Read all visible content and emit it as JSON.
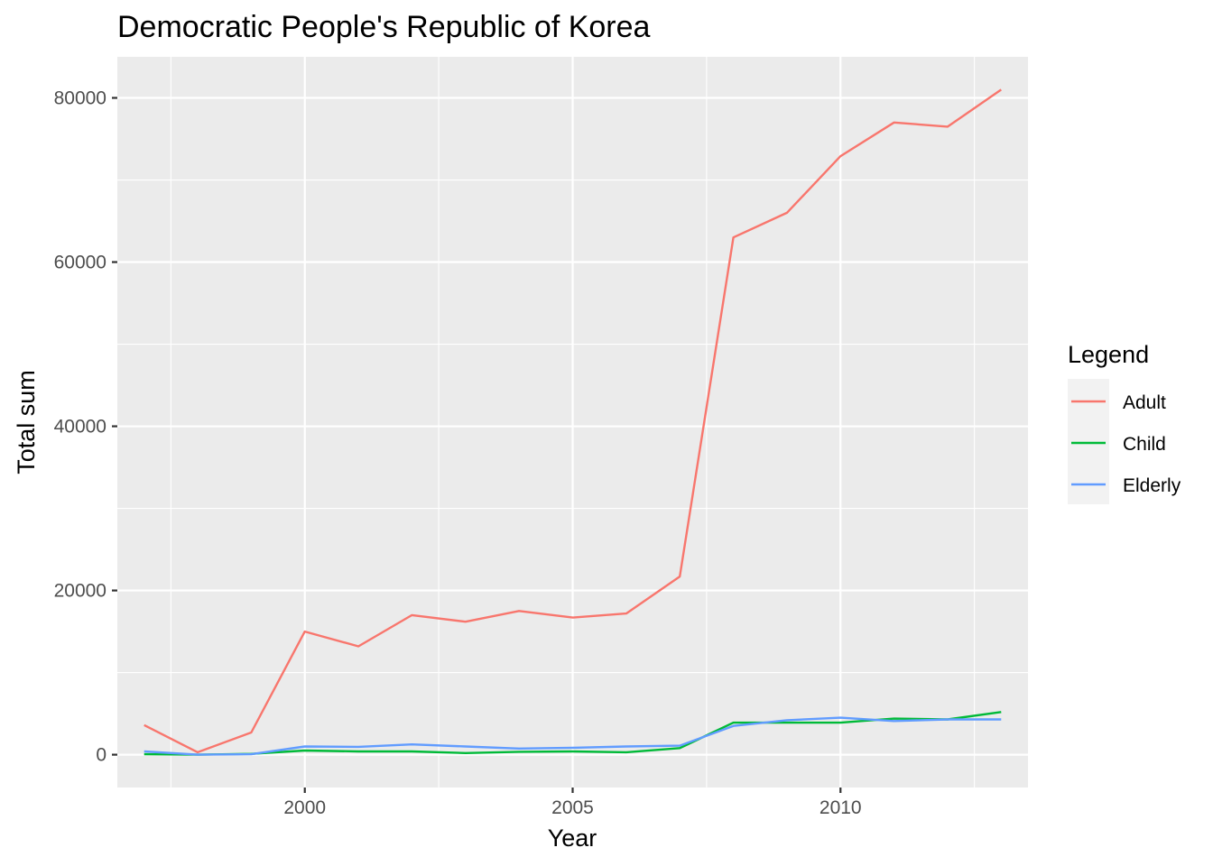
{
  "chart_data": {
    "type": "line",
    "title": "Democratic People's Republic of Korea",
    "xlabel": "Year",
    "ylabel": "Total sum",
    "xlim": [
      1996.5,
      2013.5
    ],
    "ylim": [
      -4000,
      85000
    ],
    "x_ticks": [
      2000,
      2005,
      2010
    ],
    "x_tick_labels": [
      "2000",
      "2005",
      "2010"
    ],
    "x_minor_ticks": [
      1997.5,
      2002.5,
      2007.5,
      2012.5
    ],
    "y_ticks": [
      0,
      20000,
      40000,
      60000,
      80000
    ],
    "y_tick_labels": [
      "0",
      "20000",
      "40000",
      "60000",
      "80000"
    ],
    "y_minor_ticks": [
      10000,
      30000,
      50000,
      70000
    ],
    "grid": true,
    "legend": {
      "title": "Legend",
      "position": "right"
    },
    "x": [
      1997,
      1998,
      1999,
      2000,
      2001,
      2002,
      2003,
      2004,
      2005,
      2006,
      2007,
      2008,
      2009,
      2010,
      2011,
      2012,
      2013
    ],
    "series": [
      {
        "name": "Adult",
        "color": "#F8766D",
        "values": [
          3600,
          300,
          2700,
          15000,
          13200,
          17000,
          16200,
          17500,
          16700,
          17200,
          21700,
          63000,
          66000,
          72900,
          77000,
          76500,
          81000
        ]
      },
      {
        "name": "Child",
        "color": "#00BA38",
        "values": [
          50,
          0,
          100,
          500,
          400,
          400,
          200,
          350,
          400,
          300,
          800,
          3900,
          3900,
          3900,
          4400,
          4300,
          5200
        ]
      },
      {
        "name": "Elderly",
        "color": "#619CFF",
        "values": [
          400,
          0,
          50,
          1000,
          950,
          1250,
          1000,
          750,
          850,
          1000,
          1100,
          3500,
          4200,
          4500,
          4100,
          4300,
          4300
        ]
      }
    ]
  }
}
